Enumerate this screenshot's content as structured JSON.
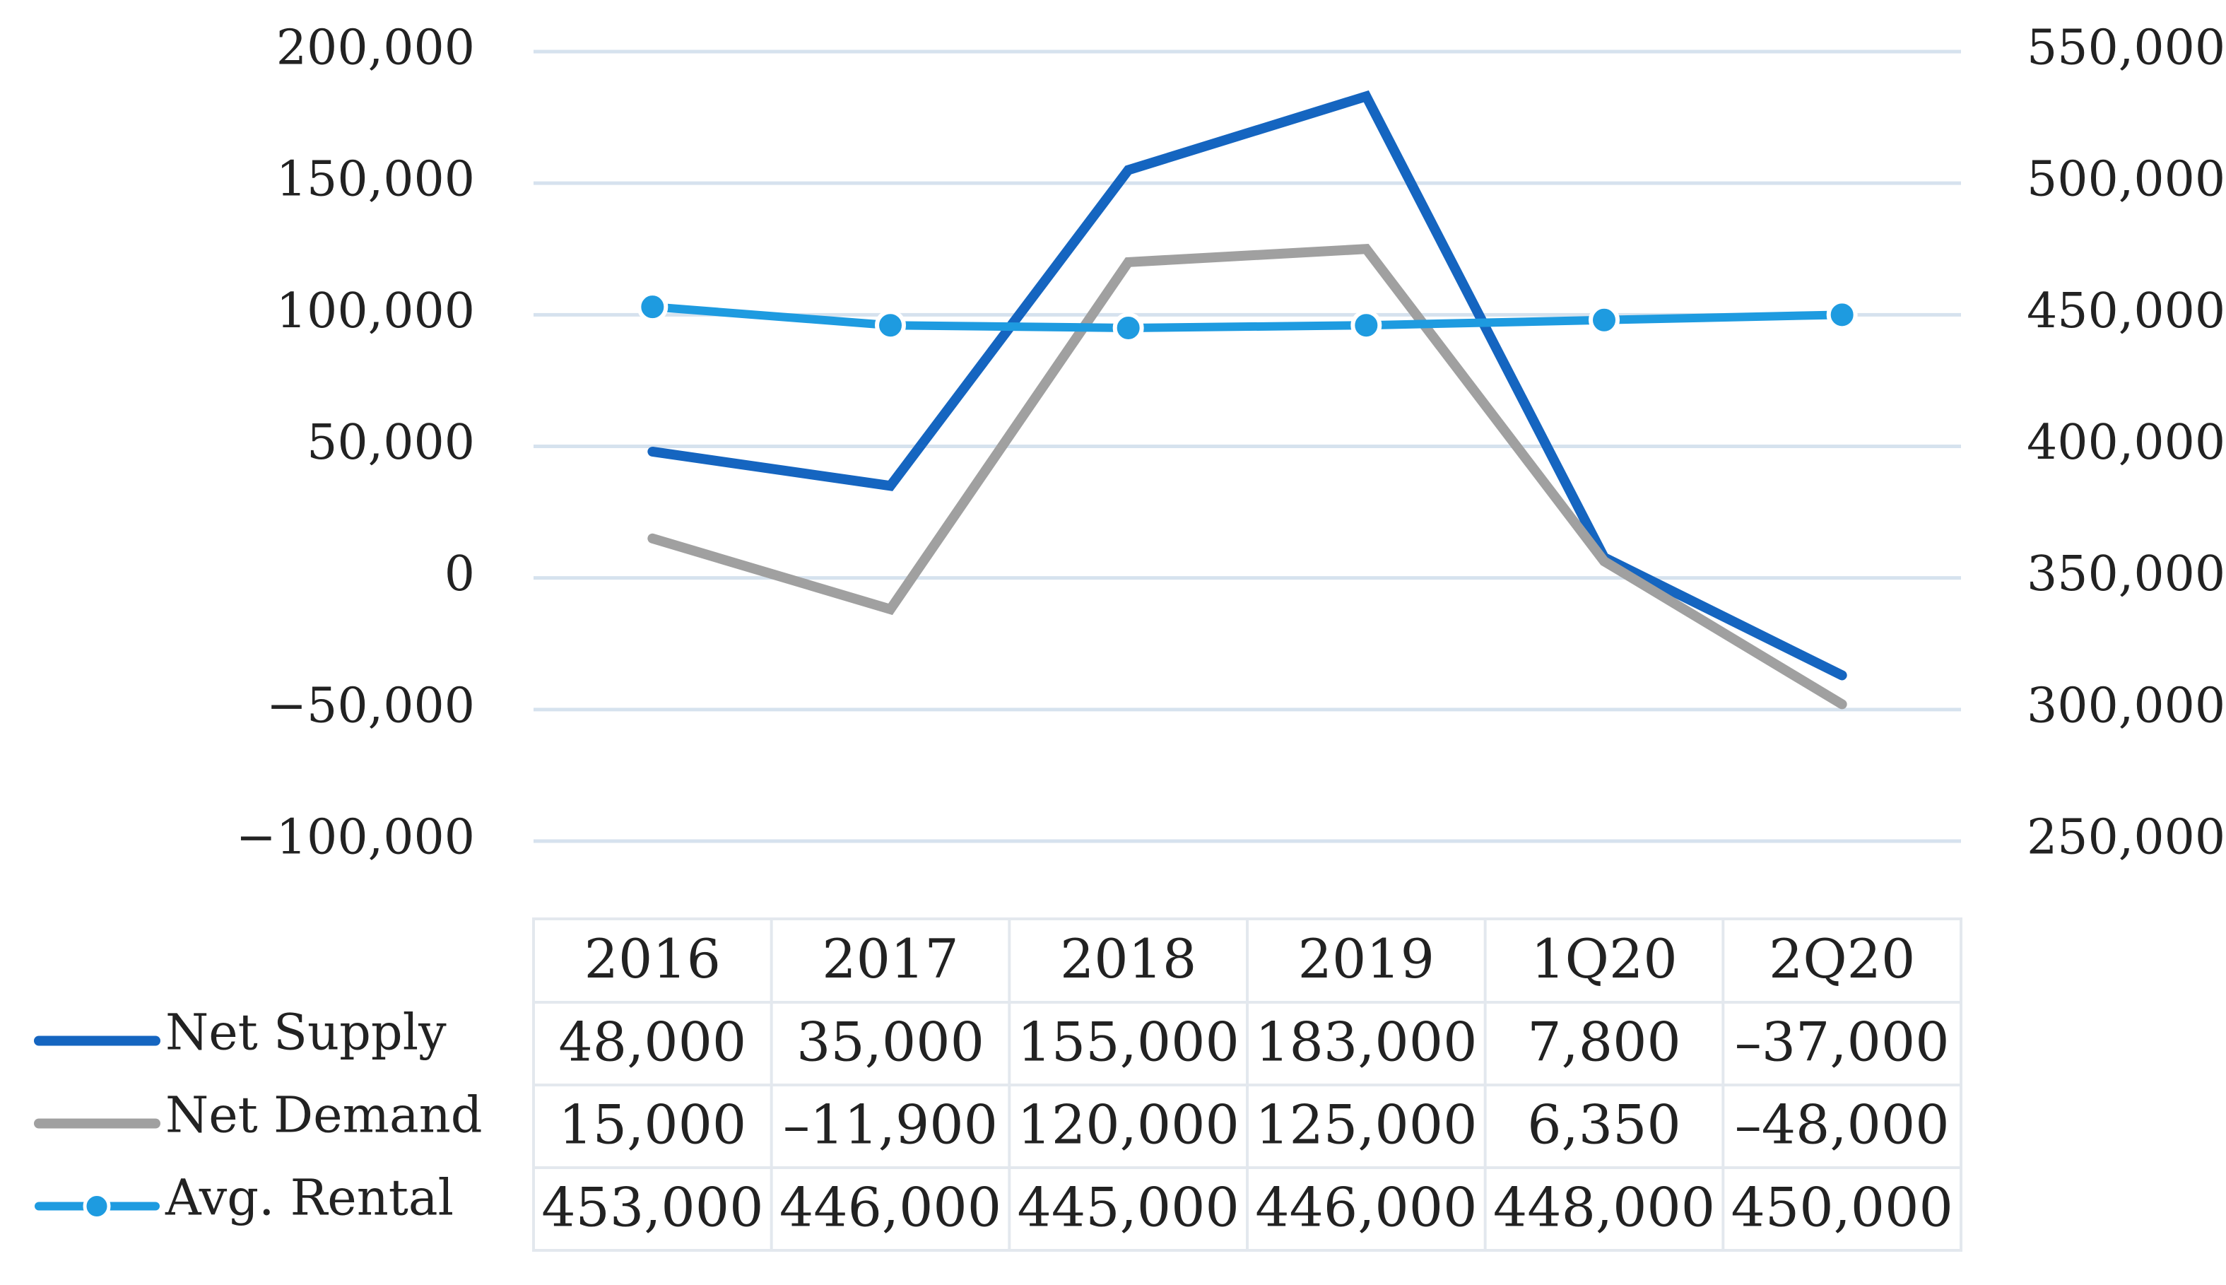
{
  "chart_data": {
    "type": "line",
    "categories": [
      "2016",
      "2017",
      "2018",
      "2019",
      "1Q20",
      "2Q20"
    ],
    "series": [
      {
        "name": "Net Supply",
        "axis": "left",
        "color": "#1565c0",
        "values": [
          48000,
          35000,
          155000,
          183000,
          7800,
          -37000
        ]
      },
      {
        "name": "Net Demand",
        "axis": "left",
        "color": "#a0a0a0",
        "values": [
          15000,
          -11900,
          120000,
          125000,
          6350,
          -48000
        ]
      },
      {
        "name": "Avg. Rental",
        "axis": "right",
        "color": "#1e9be0",
        "marker": "circle",
        "values": [
          453000,
          446000,
          445000,
          446000,
          448000,
          450000
        ]
      }
    ],
    "left_axis": {
      "ylim": [
        -100000,
        200000
      ],
      "ticks": [
        200000,
        150000,
        100000,
        50000,
        0,
        -50000,
        -100000
      ],
      "tick_labels": [
        "200,000",
        "150,000",
        "100,000",
        "50,000",
        "0",
        "−50,000",
        "−100,000"
      ]
    },
    "right_axis": {
      "ylim": [
        250000,
        550000
      ],
      "ticks": [
        550000,
        500000,
        450000,
        400000,
        350000,
        300000,
        250000
      ],
      "tick_labels": [
        "550,000",
        "500,000",
        "450,000",
        "400,000",
        "350,000",
        "300,000",
        "250,000"
      ]
    },
    "grid": true,
    "data_table": {
      "rows": [
        {
          "legend": "Net Supply",
          "cells": [
            "48,000",
            "35,000",
            "155,000",
            "183,000",
            "7,800",
            "–37,000"
          ]
        },
        {
          "legend": "Net Demand",
          "cells": [
            "15,000",
            "–11,900",
            "120,000",
            "125,000",
            "6,350",
            "–48,000"
          ]
        },
        {
          "legend": "Avg. Rental",
          "cells": [
            "453,000",
            "446,000",
            "445,000",
            "446,000",
            "448,000",
            "450,000"
          ]
        }
      ]
    }
  }
}
